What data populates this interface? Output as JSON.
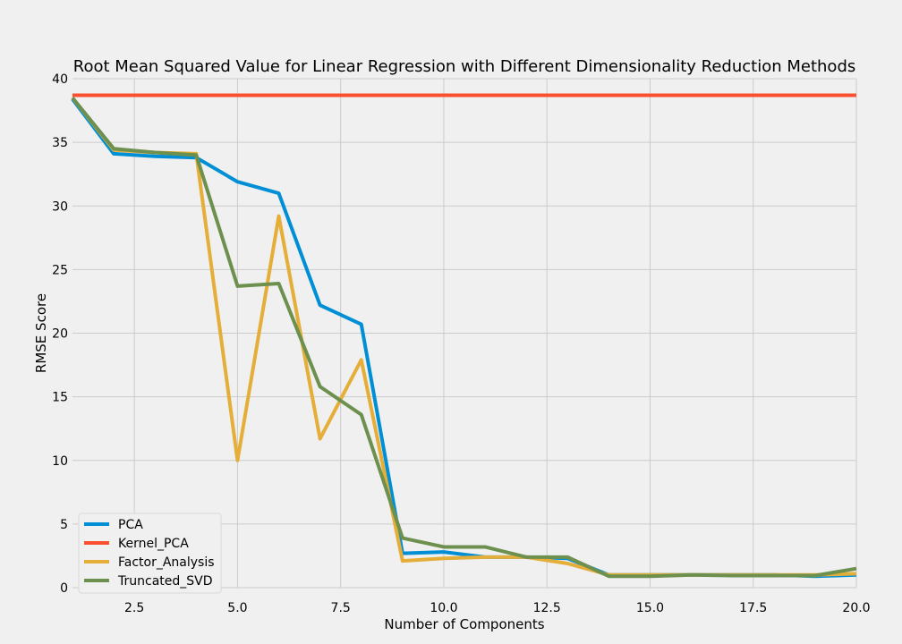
{
  "chart_data": {
    "type": "line",
    "title": "Root Mean Squared Value for Linear Regression with Different Dimensionality Reduction Methods",
    "xlabel": "Number of Components",
    "ylabel": "RMSE Score",
    "xlim": [
      1,
      20
    ],
    "ylim": [
      0,
      40
    ],
    "xticks": [
      "2.5",
      "5.0",
      "7.5",
      "10.0",
      "12.5",
      "15.0",
      "17.5",
      "20.0"
    ],
    "yticks": [
      "0",
      "5",
      "10",
      "15",
      "20",
      "25",
      "30",
      "35",
      "40"
    ],
    "grid": true,
    "legend_position": "lower-left",
    "x": [
      1,
      2,
      3,
      4,
      5,
      6,
      7,
      8,
      9,
      10,
      11,
      12,
      13,
      14,
      15,
      16,
      17,
      18,
      19,
      20
    ],
    "series": [
      {
        "name": "PCA",
        "color": "#008fd5",
        "values": [
          38.4,
          34.1,
          33.9,
          33.8,
          31.9,
          31.0,
          22.2,
          20.7,
          2.7,
          2.8,
          2.4,
          2.4,
          2.3,
          1.0,
          1.0,
          1.0,
          1.0,
          1.0,
          0.9,
          1.0
        ]
      },
      {
        "name": "Kernel_PCA",
        "color": "#fc4f30",
        "values": [
          38.7,
          38.7,
          38.7,
          38.7,
          38.7,
          38.7,
          38.7,
          38.7,
          38.7,
          38.7,
          38.7,
          38.7,
          38.7,
          38.7,
          38.7,
          38.7,
          38.7,
          38.7,
          38.7,
          38.7
        ]
      },
      {
        "name": "Factor_Analysis",
        "color": "#e5ae38",
        "values": [
          38.5,
          34.4,
          34.2,
          34.1,
          10.0,
          29.2,
          11.7,
          17.9,
          2.1,
          2.3,
          2.4,
          2.4,
          1.9,
          1.0,
          1.0,
          1.0,
          1.0,
          1.0,
          1.0,
          1.1
        ]
      },
      {
        "name": "Truncated_SVD",
        "color": "#6d904f",
        "values": [
          38.5,
          34.5,
          34.2,
          34.0,
          23.7,
          23.9,
          15.8,
          13.6,
          3.9,
          3.2,
          3.2,
          2.4,
          2.4,
          0.9,
          0.9,
          1.0,
          0.95,
          0.95,
          0.95,
          1.5
        ]
      }
    ]
  }
}
